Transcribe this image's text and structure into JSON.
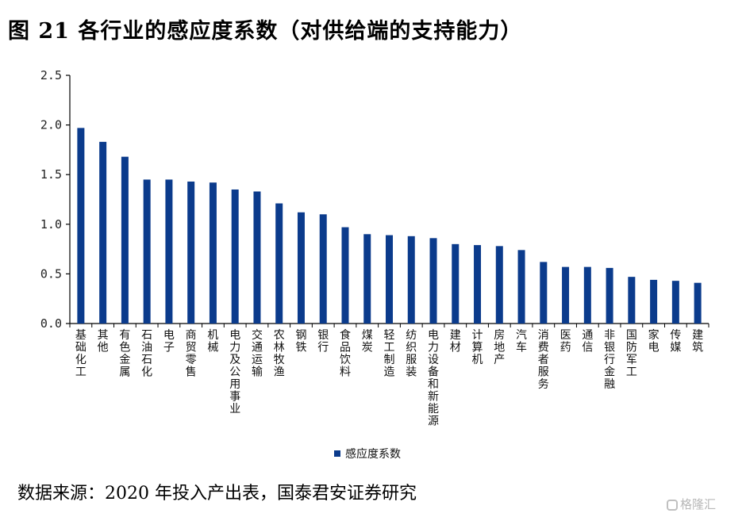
{
  "figure": {
    "title": "图 21  各行业的感应度系数（对供给端的支持能力）",
    "source": "数据来源：2020 年投入产出表，国泰君安证券研究",
    "watermark": "格隆汇"
  },
  "colors": {
    "bar": "#0b3b8c",
    "axis": "#000000"
  },
  "chart_data": {
    "type": "bar",
    "title": "",
    "xlabel": "",
    "ylabel": "",
    "ylim": [
      0,
      2.5
    ],
    "yticks": [
      "0.0",
      "0.5",
      "1.0",
      "1.5",
      "2.0",
      "2.5"
    ],
    "categories": [
      "基础化工",
      "其他",
      "有色金属",
      "石油石化",
      "电子",
      "商贸零售",
      "机械",
      "电力及公用事业",
      "交通运输",
      "农林牧渔",
      "钢铁",
      "银行",
      "食品饮料",
      "煤炭",
      "轻工制造",
      "纺织服装",
      "电力设备和新能源",
      "建材",
      "计算机",
      "房地产",
      "汽车",
      "消费者服务",
      "医药",
      "通信",
      "非银行金融",
      "国防军工",
      "家电",
      "传媒",
      "建筑"
    ],
    "series": [
      {
        "name": "感应度系数",
        "values": [
          1.97,
          1.83,
          1.68,
          1.45,
          1.45,
          1.43,
          1.42,
          1.35,
          1.33,
          1.21,
          1.12,
          1.1,
          0.97,
          0.9,
          0.89,
          0.88,
          0.86,
          0.8,
          0.79,
          0.78,
          0.74,
          0.62,
          0.57,
          0.57,
          0.56,
          0.47,
          0.44,
          0.43,
          0.41
        ]
      }
    ],
    "grid": false,
    "legend_position": "bottom"
  }
}
